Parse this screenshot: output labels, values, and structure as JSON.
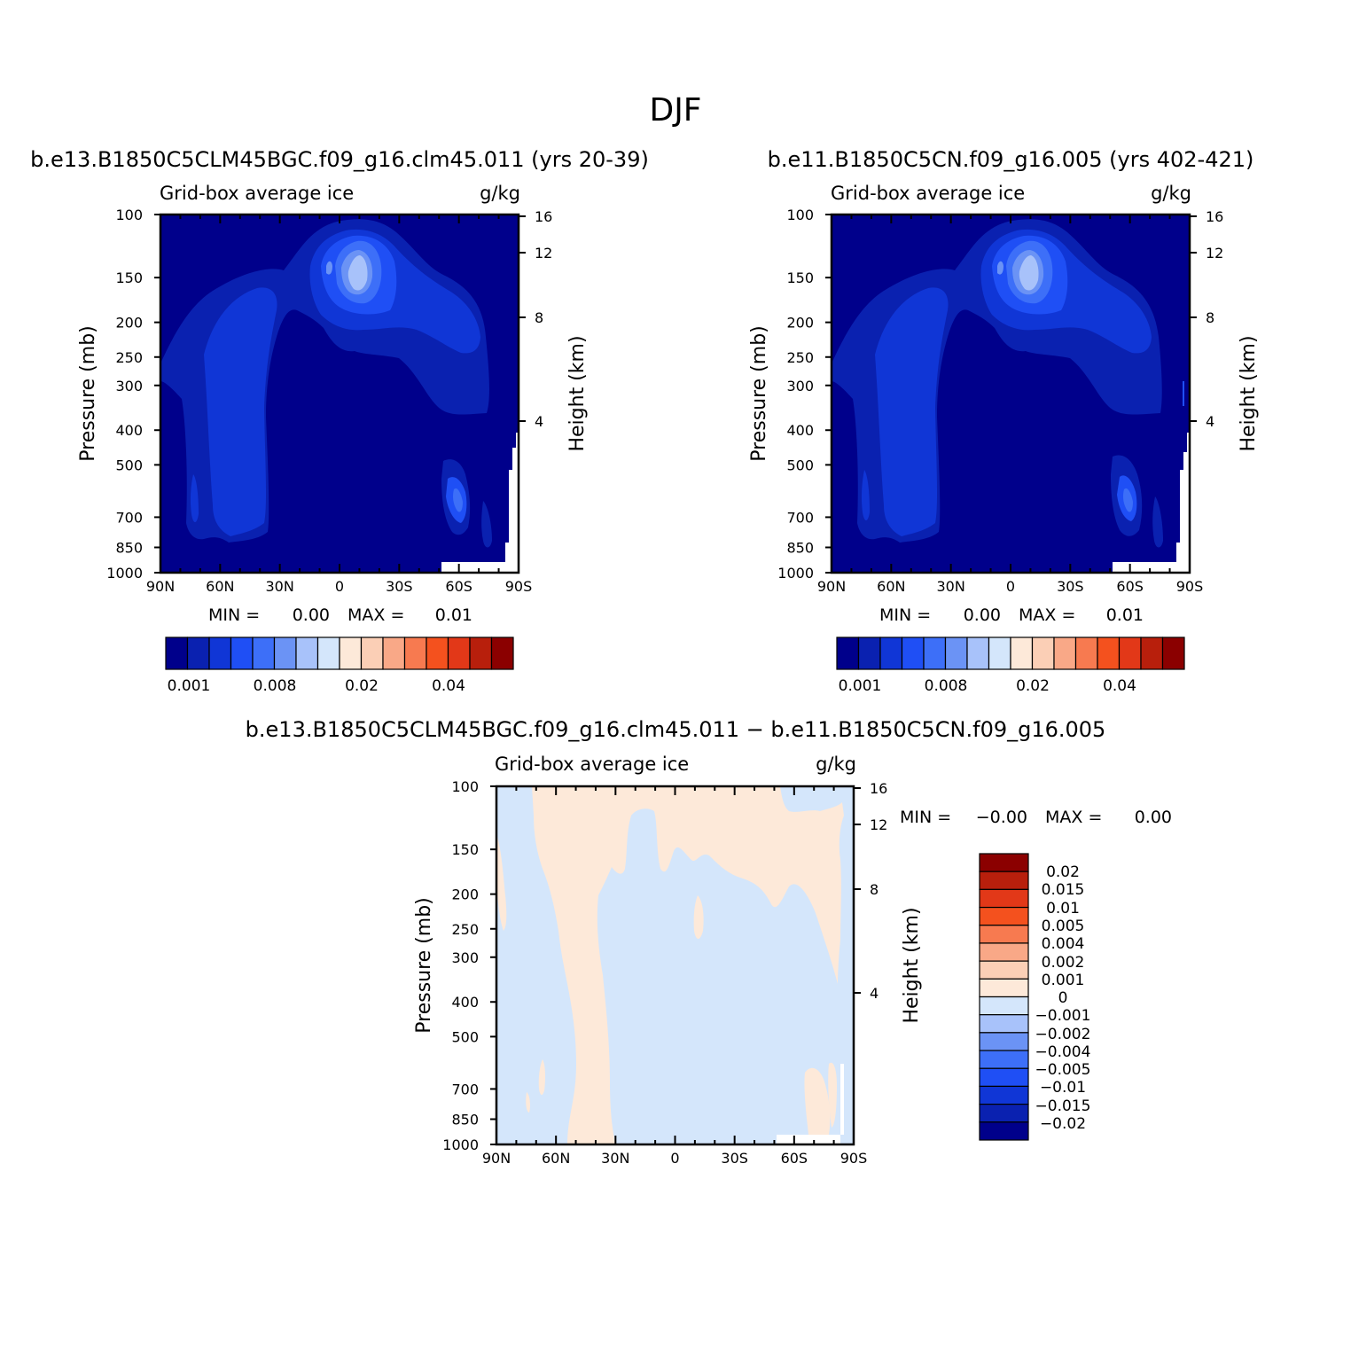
{
  "page": {
    "title": "DJF"
  },
  "colors": {
    "abs": [
      "#00008b",
      "#0a21b0",
      "#1036d6",
      "#1f4ff5",
      "#3d6ff8",
      "#6b93f5",
      "#a8c2fa",
      "#d4e6fb",
      "#fde9d9",
      "#fbcfb6",
      "#f9a887",
      "#f77a50",
      "#f4511e",
      "#e23818",
      "#b81f0c",
      "#8b0000"
    ],
    "diff": [
      "#00008b",
      "#0a21b0",
      "#1036d6",
      "#1f4ff5",
      "#3d6ff8",
      "#6b93f5",
      "#a8c2fa",
      "#d4e6fb",
      "#fde9d9",
      "#fbcfb6",
      "#f9a887",
      "#f77a50",
      "#f4511e",
      "#e23818",
      "#b81f0c",
      "#8b0000"
    ],
    "missing": "#ffffff"
  },
  "chart_data": [
    {
      "type": "heatmap",
      "panel": "left",
      "title": "b.e13.B1850C5CLM45BGC.f09_g16.clm45.011 (yrs 20-39)",
      "left_label": "Grid-box average ice",
      "right_label": "g/kg",
      "xlabel": "",
      "ylabel": "Pressure (mb)",
      "y2label": "Height (km)",
      "x_ticks": [
        "90N",
        "60N",
        "30N",
        "0",
        "30S",
        "60S",
        "90S"
      ],
      "x_range": [
        90,
        -90
      ],
      "y_ticks": [
        100,
        150,
        200,
        250,
        300,
        400,
        500,
        700,
        850,
        1000
      ],
      "y_range": [
        100,
        1000
      ],
      "y2_ticks": [
        16,
        12,
        8,
        4
      ],
      "min_label": "MIN =",
      "min_value": "0.00",
      "max_label": "MAX =",
      "max_value": "0.01",
      "colorbar_labels": [
        "0.001",
        "0.008",
        "0.02",
        "0.04"
      ],
      "colorbar_levels": 16
    },
    {
      "type": "heatmap",
      "panel": "right",
      "title": "b.e11.B1850C5CN.f09_g16.005 (yrs 402-421)",
      "left_label": "Grid-box average ice",
      "right_label": "g/kg",
      "xlabel": "",
      "ylabel": "Pressure (mb)",
      "y2label": "Height (km)",
      "x_ticks": [
        "90N",
        "60N",
        "30N",
        "0",
        "30S",
        "60S",
        "90S"
      ],
      "x_range": [
        90,
        -90
      ],
      "y_ticks": [
        100,
        150,
        200,
        250,
        300,
        400,
        500,
        700,
        850,
        1000
      ],
      "y_range": [
        100,
        1000
      ],
      "y2_ticks": [
        16,
        12,
        8,
        4
      ],
      "min_label": "MIN =",
      "min_value": "0.00",
      "max_label": "MAX =",
      "max_value": "0.01",
      "colorbar_labels": [
        "0.001",
        "0.008",
        "0.02",
        "0.04"
      ],
      "colorbar_levels": 16
    },
    {
      "type": "heatmap",
      "panel": "diff",
      "title": "b.e13.B1850C5CLM45BGC.f09_g16.clm45.011 − b.e11.B1850C5CN.f09_g16.005",
      "left_label": "Grid-box average ice",
      "right_label": "g/kg",
      "xlabel": "",
      "ylabel": "Pressure (mb)",
      "y2label": "Height (km)",
      "x_ticks": [
        "90N",
        "60N",
        "30N",
        "0",
        "30S",
        "60S",
        "90S"
      ],
      "x_range": [
        90,
        -90
      ],
      "y_ticks": [
        100,
        150,
        200,
        250,
        300,
        400,
        500,
        700,
        850,
        1000
      ],
      "y_range": [
        100,
        1000
      ],
      "y2_ticks": [
        16,
        12,
        8,
        4
      ],
      "min_label": "MIN =",
      "min_value": "−0.00",
      "max_label": "MAX =",
      "max_value": "0.00",
      "colorbar_labels": [
        "0.02",
        "0.015",
        "0.01",
        "0.005",
        "0.004",
        "0.002",
        "0.001",
        "0",
        "−0.001",
        "−0.002",
        "−0.004",
        "−0.005",
        "−0.01",
        "−0.015",
        "−0.02"
      ],
      "colorbar_levels": 15
    }
  ]
}
